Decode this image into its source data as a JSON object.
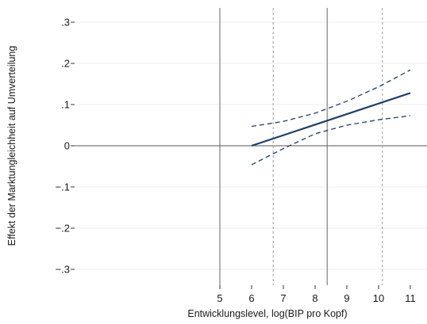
{
  "chart_data": {
    "type": "line",
    "xlabel": "Entwicklungslevel, log(BIP pro Kopf)",
    "ylabel": "Effekt der Marktungleichheit auf Umverteilung",
    "xlim": [
      4.95,
      11.2
    ],
    "ylim": [
      -0.33,
      0.33
    ],
    "x_ticks": [
      5,
      6,
      7,
      8,
      9,
      10,
      11
    ],
    "x_tick_labels": [
      "5",
      "6",
      "7",
      "8",
      "9",
      "10",
      "11"
    ],
    "y_ticks": [
      0.3,
      0.2,
      0.1,
      0,
      -0.1,
      -0.2,
      -0.3
    ],
    "y_tick_labels": [
      ".3",
      ".2",
      ".1",
      "0",
      "−.1",
      "−.2",
      "−.3"
    ],
    "grid": true,
    "reference_lines": {
      "horizontal_y": 0,
      "vertical_solid_x": [
        5,
        8.38
      ],
      "vertical_dashed_x": [
        6.68,
        10.12
      ]
    },
    "series": [
      {
        "style": "solid",
        "color": "#1f3f66",
        "x": [
          6,
          11
        ],
        "y": [
          0.0,
          0.128
        ]
      },
      {
        "style": "dashed",
        "color": "#1f3f66",
        "x": [
          6,
          7,
          8,
          9,
          10,
          11
        ],
        "y": [
          0.047,
          0.059,
          0.079,
          0.108,
          0.143,
          0.184
        ]
      },
      {
        "style": "dashed",
        "color": "#1f3f66",
        "x": [
          6,
          7,
          8,
          9,
          10,
          11
        ],
        "y": [
          -0.046,
          -0.007,
          0.029,
          0.05,
          0.063,
          0.073
        ]
      }
    ]
  }
}
